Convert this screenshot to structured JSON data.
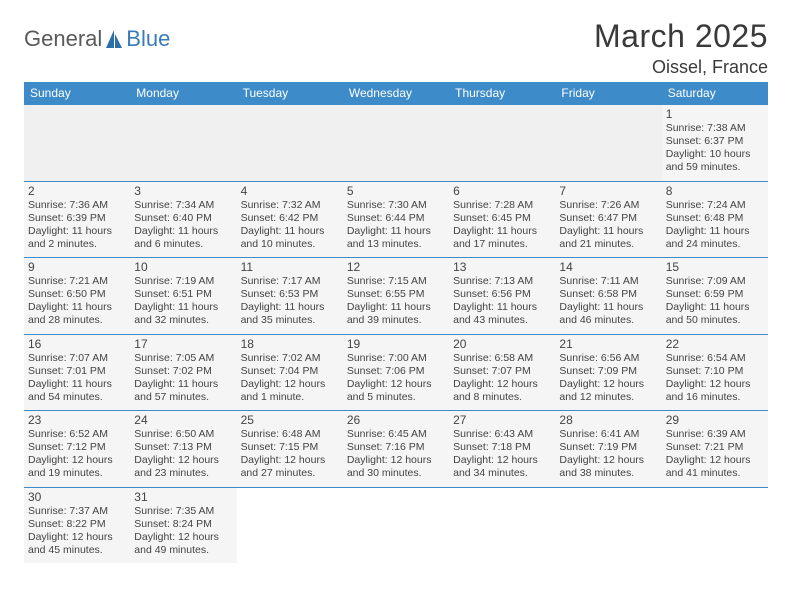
{
  "logo": {
    "general": "General",
    "blue": "Blue"
  },
  "title": "March 2025",
  "location": "Oissel, France",
  "colors": {
    "header_bg": "#3d8bc8",
    "header_text": "#ffffff",
    "cell_bg": "#f5f5f5",
    "cell_border": "#3d8bc8",
    "page_bg": "#ffffff",
    "text": "#333333",
    "logo_gray": "#5a5a5a",
    "logo_blue": "#3a7ab8"
  },
  "weekdays": [
    "Sunday",
    "Monday",
    "Tuesday",
    "Wednesday",
    "Thursday",
    "Friday",
    "Saturday"
  ],
  "weeks": [
    [
      null,
      null,
      null,
      null,
      null,
      null,
      {
        "n": "1",
        "sr": "Sunrise: 7:38 AM",
        "ss": "Sunset: 6:37 PM",
        "dl": "Daylight: 10 hours and 59 minutes."
      }
    ],
    [
      {
        "n": "2",
        "sr": "Sunrise: 7:36 AM",
        "ss": "Sunset: 6:39 PM",
        "dl": "Daylight: 11 hours and 2 minutes."
      },
      {
        "n": "3",
        "sr": "Sunrise: 7:34 AM",
        "ss": "Sunset: 6:40 PM",
        "dl": "Daylight: 11 hours and 6 minutes."
      },
      {
        "n": "4",
        "sr": "Sunrise: 7:32 AM",
        "ss": "Sunset: 6:42 PM",
        "dl": "Daylight: 11 hours and 10 minutes."
      },
      {
        "n": "5",
        "sr": "Sunrise: 7:30 AM",
        "ss": "Sunset: 6:44 PM",
        "dl": "Daylight: 11 hours and 13 minutes."
      },
      {
        "n": "6",
        "sr": "Sunrise: 7:28 AM",
        "ss": "Sunset: 6:45 PM",
        "dl": "Daylight: 11 hours and 17 minutes."
      },
      {
        "n": "7",
        "sr": "Sunrise: 7:26 AM",
        "ss": "Sunset: 6:47 PM",
        "dl": "Daylight: 11 hours and 21 minutes."
      },
      {
        "n": "8",
        "sr": "Sunrise: 7:24 AM",
        "ss": "Sunset: 6:48 PM",
        "dl": "Daylight: 11 hours and 24 minutes."
      }
    ],
    [
      {
        "n": "9",
        "sr": "Sunrise: 7:21 AM",
        "ss": "Sunset: 6:50 PM",
        "dl": "Daylight: 11 hours and 28 minutes."
      },
      {
        "n": "10",
        "sr": "Sunrise: 7:19 AM",
        "ss": "Sunset: 6:51 PM",
        "dl": "Daylight: 11 hours and 32 minutes."
      },
      {
        "n": "11",
        "sr": "Sunrise: 7:17 AM",
        "ss": "Sunset: 6:53 PM",
        "dl": "Daylight: 11 hours and 35 minutes."
      },
      {
        "n": "12",
        "sr": "Sunrise: 7:15 AM",
        "ss": "Sunset: 6:55 PM",
        "dl": "Daylight: 11 hours and 39 minutes."
      },
      {
        "n": "13",
        "sr": "Sunrise: 7:13 AM",
        "ss": "Sunset: 6:56 PM",
        "dl": "Daylight: 11 hours and 43 minutes."
      },
      {
        "n": "14",
        "sr": "Sunrise: 7:11 AM",
        "ss": "Sunset: 6:58 PM",
        "dl": "Daylight: 11 hours and 46 minutes."
      },
      {
        "n": "15",
        "sr": "Sunrise: 7:09 AM",
        "ss": "Sunset: 6:59 PM",
        "dl": "Daylight: 11 hours and 50 minutes."
      }
    ],
    [
      {
        "n": "16",
        "sr": "Sunrise: 7:07 AM",
        "ss": "Sunset: 7:01 PM",
        "dl": "Daylight: 11 hours and 54 minutes."
      },
      {
        "n": "17",
        "sr": "Sunrise: 7:05 AM",
        "ss": "Sunset: 7:02 PM",
        "dl": "Daylight: 11 hours and 57 minutes."
      },
      {
        "n": "18",
        "sr": "Sunrise: 7:02 AM",
        "ss": "Sunset: 7:04 PM",
        "dl": "Daylight: 12 hours and 1 minute."
      },
      {
        "n": "19",
        "sr": "Sunrise: 7:00 AM",
        "ss": "Sunset: 7:06 PM",
        "dl": "Daylight: 12 hours and 5 minutes."
      },
      {
        "n": "20",
        "sr": "Sunrise: 6:58 AM",
        "ss": "Sunset: 7:07 PM",
        "dl": "Daylight: 12 hours and 8 minutes."
      },
      {
        "n": "21",
        "sr": "Sunrise: 6:56 AM",
        "ss": "Sunset: 7:09 PM",
        "dl": "Daylight: 12 hours and 12 minutes."
      },
      {
        "n": "22",
        "sr": "Sunrise: 6:54 AM",
        "ss": "Sunset: 7:10 PM",
        "dl": "Daylight: 12 hours and 16 minutes."
      }
    ],
    [
      {
        "n": "23",
        "sr": "Sunrise: 6:52 AM",
        "ss": "Sunset: 7:12 PM",
        "dl": "Daylight: 12 hours and 19 minutes."
      },
      {
        "n": "24",
        "sr": "Sunrise: 6:50 AM",
        "ss": "Sunset: 7:13 PM",
        "dl": "Daylight: 12 hours and 23 minutes."
      },
      {
        "n": "25",
        "sr": "Sunrise: 6:48 AM",
        "ss": "Sunset: 7:15 PM",
        "dl": "Daylight: 12 hours and 27 minutes."
      },
      {
        "n": "26",
        "sr": "Sunrise: 6:45 AM",
        "ss": "Sunset: 7:16 PM",
        "dl": "Daylight: 12 hours and 30 minutes."
      },
      {
        "n": "27",
        "sr": "Sunrise: 6:43 AM",
        "ss": "Sunset: 7:18 PM",
        "dl": "Daylight: 12 hours and 34 minutes."
      },
      {
        "n": "28",
        "sr": "Sunrise: 6:41 AM",
        "ss": "Sunset: 7:19 PM",
        "dl": "Daylight: 12 hours and 38 minutes."
      },
      {
        "n": "29",
        "sr": "Sunrise: 6:39 AM",
        "ss": "Sunset: 7:21 PM",
        "dl": "Daylight: 12 hours and 41 minutes."
      }
    ],
    [
      {
        "n": "30",
        "sr": "Sunrise: 7:37 AM",
        "ss": "Sunset: 8:22 PM",
        "dl": "Daylight: 12 hours and 45 minutes."
      },
      {
        "n": "31",
        "sr": "Sunrise: 7:35 AM",
        "ss": "Sunset: 8:24 PM",
        "dl": "Daylight: 12 hours and 49 minutes."
      },
      null,
      null,
      null,
      null,
      null
    ]
  ]
}
